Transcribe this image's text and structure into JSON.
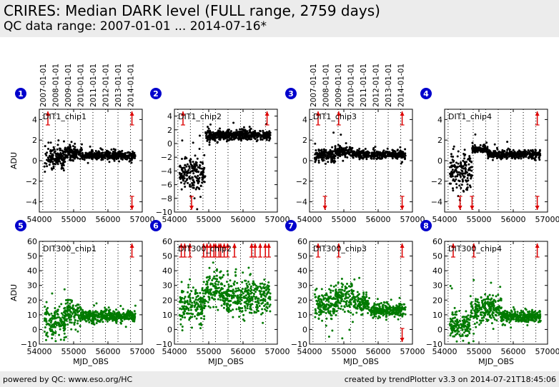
{
  "header": {
    "title": "CRIRES: Median DARK level (FULL range, 2759 days)",
    "subtitle": "QC data range: 2007-01-01 ... 2014-07-16*"
  },
  "footer": {
    "left": "powered by QC: www.eso.org/HC",
    "right": "created by trendPlotter v3.3 on 2014-07-21T18:45:06"
  },
  "colors": {
    "marker_blue": "#0000cc",
    "series_black": "#000000",
    "series_green": "#007a00",
    "outlier_red": "#dd0000",
    "header_bg": "#ececec"
  },
  "date_labels": [
    "2007-01-01",
    "2008-01-01",
    "2009-01-01",
    "2010-01-01",
    "2011-01-01",
    "2012-01-01",
    "2013-01-01",
    "2014-01-01"
  ],
  "x_label": "MJD_OBS",
  "y_label": "ADU",
  "chart_data": [
    {
      "type": "scatter",
      "panel": "1",
      "name": "DIT1_chip1",
      "color": "#000000",
      "xlim": [
        54000,
        57000
      ],
      "ylim": [
        -5,
        5
      ],
      "yticks": [
        -4,
        -2,
        0,
        2,
        4
      ],
      "xticks": [
        54000,
        55000,
        56000,
        57000
      ],
      "segments": [
        {
          "x0": 54150,
          "x1": 54750,
          "y": 0.3,
          "s": 0.5
        },
        {
          "x0": 54750,
          "x1": 55250,
          "y": 0.8,
          "s": 0.3
        },
        {
          "x0": 55250,
          "x1": 56800,
          "y": 0.5,
          "s": 0.2
        }
      ],
      "outliers_high": [
        54250,
        56700
      ],
      "outliers_low": [
        56700
      ],
      "show_dates": true,
      "show_ylabel": true,
      "show_xlabel": false
    },
    {
      "type": "scatter",
      "panel": "2",
      "name": "DIT1_chip2",
      "color": "#000000",
      "xlim": [
        54000,
        57000
      ],
      "ylim": [
        -10,
        5
      ],
      "yticks": [
        -10,
        -8,
        -6,
        -4,
        -2,
        0,
        2,
        4
      ],
      "xticks": [
        54000,
        55000,
        56000,
        57000
      ],
      "segments": [
        {
          "x0": 54150,
          "x1": 54900,
          "y": -4.5,
          "s": 1.2
        },
        {
          "x0": 54900,
          "x1": 56800,
          "y": 1.2,
          "s": 0.4
        }
      ],
      "outliers_high": [
        54250,
        56700
      ],
      "outliers_low": [
        54500
      ],
      "show_dates": false,
      "show_ylabel": false,
      "show_xlabel": false
    },
    {
      "type": "scatter",
      "panel": "3",
      "name": "DIT1_chip3",
      "color": "#000000",
      "xlim": [
        54000,
        57000
      ],
      "ylim": [
        -5,
        5
      ],
      "yticks": [
        -4,
        -2,
        0,
        2,
        4
      ],
      "xticks": [
        54000,
        55000,
        56000,
        57000
      ],
      "segments": [
        {
          "x0": 54150,
          "x1": 54750,
          "y": 0.5,
          "s": 0.3
        },
        {
          "x0": 54750,
          "x1": 55250,
          "y": 0.9,
          "s": 0.3
        },
        {
          "x0": 55250,
          "x1": 56800,
          "y": 0.6,
          "s": 0.2
        }
      ],
      "outliers_high": [
        54250,
        54850,
        56700
      ],
      "outliers_low": [
        54450,
        56700
      ],
      "show_dates": true,
      "show_ylabel": false,
      "show_xlabel": false
    },
    {
      "type": "scatter",
      "panel": "4",
      "name": "DIT1_chip4",
      "color": "#000000",
      "xlim": [
        54000,
        57000
      ],
      "ylim": [
        -5,
        5
      ],
      "yticks": [
        -4,
        -2,
        0,
        2,
        4
      ],
      "xticks": [
        54000,
        55000,
        56000,
        57000
      ],
      "segments": [
        {
          "x0": 54150,
          "x1": 54800,
          "y": -1.0,
          "s": 0.9
        },
        {
          "x0": 54800,
          "x1": 55250,
          "y": 1.1,
          "s": 0.2
        },
        {
          "x0": 55250,
          "x1": 56800,
          "y": 0.6,
          "s": 0.2
        }
      ],
      "outliers_high": [
        56700
      ],
      "outliers_low": [
        54450,
        54800,
        56700
      ],
      "show_dates": false,
      "show_ylabel": false,
      "show_xlabel": false
    },
    {
      "type": "scatter",
      "panel": "5",
      "name": "DIT300_chip1",
      "color": "#007a00",
      "xlim": [
        54000,
        57000
      ],
      "ylim": [
        -10,
        60
      ],
      "yticks": [
        -10,
        0,
        10,
        20,
        30,
        40,
        50,
        60
      ],
      "xticks": [
        54000,
        55000,
        56000,
        57000
      ],
      "segments": [
        {
          "x0": 54150,
          "x1": 54750,
          "y": 5,
          "s": 6
        },
        {
          "x0": 54750,
          "x1": 55250,
          "y": 12,
          "s": 4
        },
        {
          "x0": 55250,
          "x1": 56800,
          "y": 9,
          "s": 2
        }
      ],
      "outliers_high": [
        56700
      ],
      "outliers_low": [],
      "show_dates": false,
      "show_ylabel": true,
      "show_xlabel": true
    },
    {
      "type": "scatter",
      "panel": "6",
      "name": "DIT300_chip2",
      "color": "#007a00",
      "xlim": [
        54000,
        57000
      ],
      "ylim": [
        -10,
        60
      ],
      "yticks": [
        -10,
        0,
        10,
        20,
        30,
        40,
        50,
        60
      ],
      "xticks": [
        54000,
        55000,
        56000,
        57000
      ],
      "segments": [
        {
          "x0": 54150,
          "x1": 54900,
          "y": 17,
          "s": 7
        },
        {
          "x0": 54900,
          "x1": 55400,
          "y": 27,
          "s": 6
        },
        {
          "x0": 55400,
          "x1": 56800,
          "y": 22,
          "s": 6
        }
      ],
      "outliers_high": [
        54200,
        54300,
        54450,
        54850,
        54950,
        55050,
        55150,
        55200,
        55300,
        55350,
        55450,
        55550,
        55750,
        56250,
        56350,
        56500,
        56650,
        56750
      ],
      "outliers_low": [],
      "show_dates": false,
      "show_ylabel": false,
      "show_xlabel": true
    },
    {
      "type": "scatter",
      "panel": "7",
      "name": "DIT300_chip3",
      "color": "#007a00",
      "xlim": [
        54000,
        57000
      ],
      "ylim": [
        -10,
        60
      ],
      "yticks": [
        -10,
        0,
        10,
        20,
        30,
        40,
        50,
        60
      ],
      "xticks": [
        54000,
        55000,
        56000,
        57000
      ],
      "segments": [
        {
          "x0": 54150,
          "x1": 54750,
          "y": 17,
          "s": 5
        },
        {
          "x0": 54750,
          "x1": 55300,
          "y": 22,
          "s": 5
        },
        {
          "x0": 55300,
          "x1": 55750,
          "y": 18,
          "s": 3
        },
        {
          "x0": 55750,
          "x1": 56800,
          "y": 13,
          "s": 2
        }
      ],
      "outliers_high": [
        54250,
        54850,
        56700
      ],
      "outliers_low": [
        56700
      ],
      "show_dates": false,
      "show_ylabel": false,
      "show_xlabel": true
    },
    {
      "type": "scatter",
      "panel": "8",
      "name": "DIT300_chip4",
      "color": "#007a00",
      "xlim": [
        54000,
        57000
      ],
      "ylim": [
        -10,
        60
      ],
      "yticks": [
        -10,
        0,
        10,
        20,
        30,
        40,
        50,
        60
      ],
      "xticks": [
        54000,
        55000,
        56000,
        57000
      ],
      "segments": [
        {
          "x0": 54150,
          "x1": 54750,
          "y": 3,
          "s": 5
        },
        {
          "x0": 54750,
          "x1": 55650,
          "y": 14,
          "s": 5
        },
        {
          "x0": 55650,
          "x1": 56800,
          "y": 9,
          "s": 2
        }
      ],
      "outliers_high": [
        54250,
        54850,
        56700
      ],
      "outliers_low": [],
      "show_dates": false,
      "show_ylabel": false,
      "show_xlabel": true
    }
  ]
}
